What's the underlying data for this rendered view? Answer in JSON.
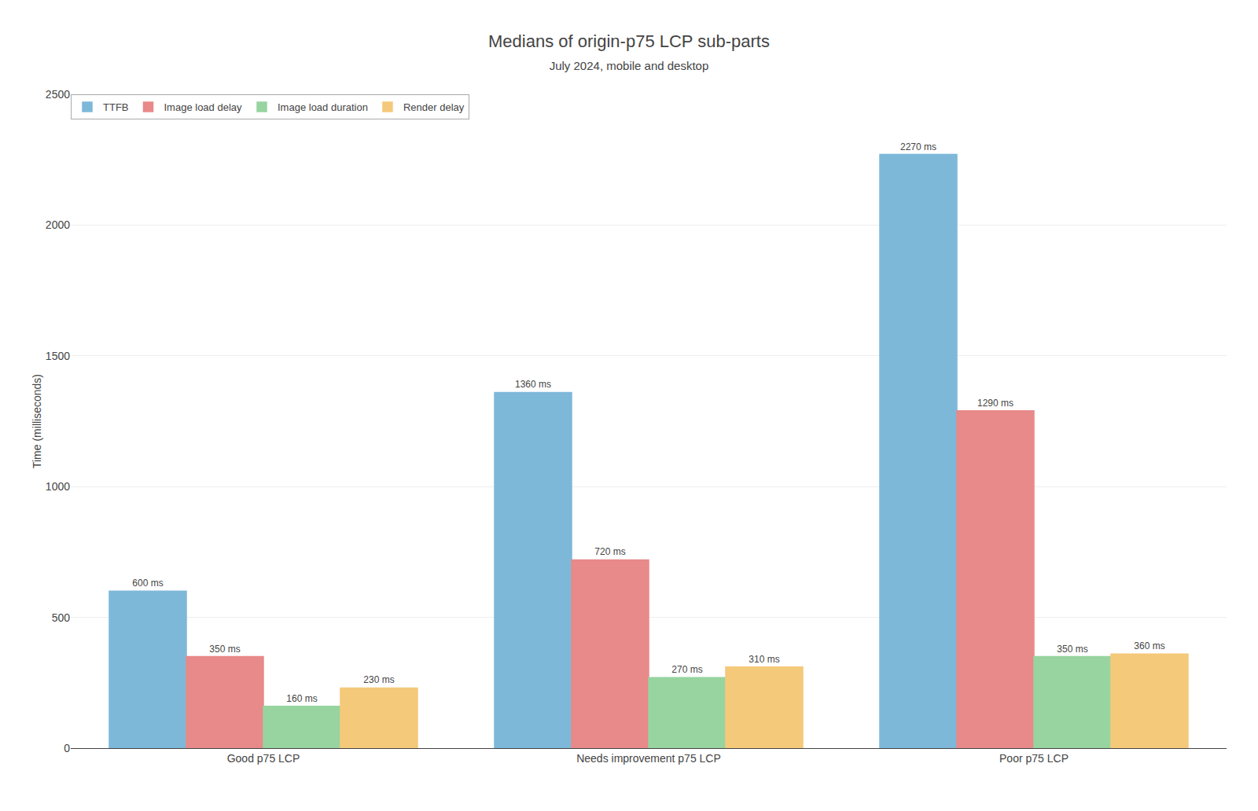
{
  "chart_data": {
    "type": "bar",
    "title": "Medians of origin-p75 LCP sub-parts",
    "subtitle": "July 2024, mobile and desktop",
    "categories": [
      "Good p75 LCP",
      "Needs improvement p75 LCP",
      "Poor p75 LCP"
    ],
    "series": [
      {
        "name": "TTFB",
        "color": "#7eb8d9",
        "values": [
          600,
          1360,
          2270
        ],
        "value_labels": [
          "600 ms",
          "1360 ms",
          "2270 ms"
        ]
      },
      {
        "name": "Image load delay",
        "color": "#e8898a",
        "values": [
          350,
          720,
          1290
        ],
        "value_labels": [
          "350 ms",
          "720 ms",
          "1290 ms"
        ]
      },
      {
        "name": "Image load duration",
        "color": "#98d4a0",
        "values": [
          160,
          270,
          350
        ],
        "value_labels": [
          "160 ms",
          "270 ms",
          "350 ms"
        ]
      },
      {
        "name": "Render delay",
        "color": "#f5c97a",
        "values": [
          230,
          310,
          360
        ],
        "value_labels": [
          "230 ms",
          "310 ms",
          "360 ms"
        ]
      }
    ],
    "ylabel": "Time (milliseconds)",
    "ylim": [
      0,
      2500
    ],
    "yticks": [
      0,
      500,
      1000,
      1500,
      2000,
      2500
    ],
    "grid": true,
    "legend": "upper left",
    "data_labels": true
  }
}
